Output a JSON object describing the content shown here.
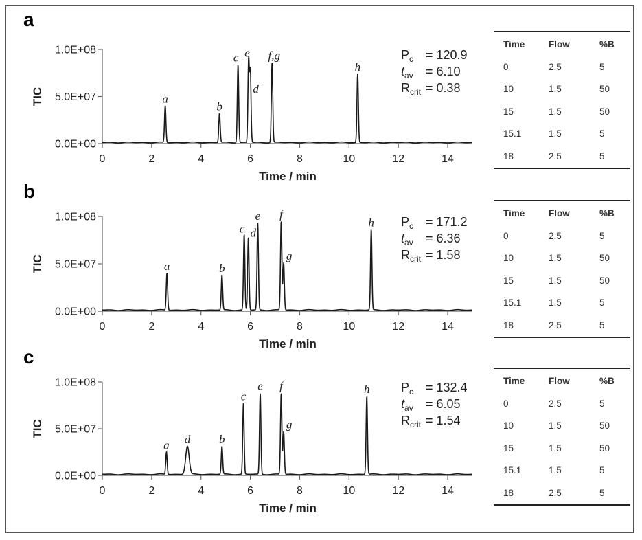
{
  "chart_data": [
    {
      "type": "line",
      "panel": "a",
      "xlabel": "Time / min",
      "ylabel": "TIC",
      "xlim": [
        0,
        15
      ],
      "ylim": [
        0,
        100000000
      ],
      "xticks": [
        "0",
        "2",
        "4",
        "6",
        "8",
        "10",
        "12",
        "14"
      ],
      "yticks": [
        "0.0E+00",
        "5.0E+07",
        "1.0E+08"
      ],
      "peaks": [
        {
          "label": "a",
          "time": 2.55,
          "height": 39000000
        },
        {
          "label": "b",
          "time": 4.75,
          "height": 31000000
        },
        {
          "label": "c",
          "time": 5.5,
          "height": 83000000
        },
        {
          "label": "e",
          "time": 5.93,
          "height": 88000000
        },
        {
          "label": "d",
          "time": 6.0,
          "height": 76000000
        },
        {
          "label": "f,g",
          "time": 6.88,
          "height": 85000000
        },
        {
          "label": "h",
          "time": 10.35,
          "height": 73000000
        }
      ],
      "stats": {
        "pc_label": "P",
        "pc_sub": "c",
        "pc_value": "= 120.9",
        "tav_label": "t",
        "tav_sub": "av",
        "tav_value": "= 6.10",
        "rcrit_label": "R",
        "rcrit_sub": "crit",
        "rcrit_value": "= 0.38"
      }
    },
    {
      "type": "line",
      "panel": "b",
      "xlabel": "Time / min",
      "ylabel": "TIC",
      "xlim": [
        0,
        15
      ],
      "ylim": [
        0,
        100000000
      ],
      "xticks": [
        "0",
        "2",
        "4",
        "6",
        "8",
        "10",
        "12",
        "14"
      ],
      "yticks": [
        "0.0E+00",
        "5.0E+07",
        "1.0E+08"
      ],
      "peaks": [
        {
          "label": "a",
          "time": 2.62,
          "height": 39000000
        },
        {
          "label": "b",
          "time": 4.85,
          "height": 37000000
        },
        {
          "label": "c",
          "time": 5.75,
          "height": 80000000
        },
        {
          "label": "d",
          "time": 5.92,
          "height": 77000000
        },
        {
          "label": "e",
          "time": 6.3,
          "height": 92000000
        },
        {
          "label": "f",
          "time": 7.25,
          "height": 94000000
        },
        {
          "label": "g",
          "time": 7.35,
          "height": 50000000
        },
        {
          "label": "h",
          "time": 10.9,
          "height": 85000000
        }
      ],
      "stats": {
        "pc_label": "P",
        "pc_sub": "c",
        "pc_value": "= 171.2",
        "tav_label": "t",
        "tav_sub": "av",
        "tav_value": "= 6.36",
        "rcrit_label": "R",
        "rcrit_sub": "crit",
        "rcrit_value": "= 1.58"
      }
    },
    {
      "type": "line",
      "panel": "c",
      "xlabel": "Time / min",
      "ylabel": "TIC",
      "xlim": [
        0,
        15
      ],
      "ylim": [
        0,
        100000000
      ],
      "xticks": [
        "0",
        "2",
        "4",
        "6",
        "8",
        "10",
        "12",
        "14"
      ],
      "yticks": [
        "0.0E+00",
        "5.0E+07",
        "1.0E+08"
      ],
      "peaks": [
        {
          "label": "a",
          "time": 2.6,
          "height": 24000000
        },
        {
          "label": "d",
          "time": 3.45,
          "height": 30000000
        },
        {
          "label": "b",
          "time": 4.85,
          "height": 30000000
        },
        {
          "label": "c",
          "time": 5.72,
          "height": 76000000
        },
        {
          "label": "e",
          "time": 6.4,
          "height": 87000000
        },
        {
          "label": "f",
          "time": 7.25,
          "height": 87000000
        },
        {
          "label": "g",
          "time": 7.35,
          "height": 46000000
        },
        {
          "label": "h",
          "time": 10.72,
          "height": 84000000
        }
      ],
      "stats": {
        "pc_label": "P",
        "pc_sub": "c",
        "pc_value": "= 132.4",
        "tav_label": "t",
        "tav_sub": "av",
        "tav_value": "= 6.05",
        "rcrit_label": "R",
        "rcrit_sub": "crit",
        "rcrit_value": "= 1.54"
      }
    }
  ],
  "gradient_tables": [
    {
      "headers": [
        "Time",
        "Flow",
        "%B"
      ],
      "rows": [
        [
          "0",
          "2.5",
          "5"
        ],
        [
          "10",
          "1.5",
          "50"
        ],
        [
          "15",
          "1.5",
          "50"
        ],
        [
          "15.1",
          "1.5",
          "5"
        ],
        [
          "18",
          "2.5",
          "5"
        ]
      ]
    },
    {
      "headers": [
        "Time",
        "Flow",
        "%B"
      ],
      "rows": [
        [
          "0",
          "2.5",
          "5"
        ],
        [
          "10",
          "1.5",
          "50"
        ],
        [
          "15",
          "1.5",
          "50"
        ],
        [
          "15.1",
          "1.5",
          "5"
        ],
        [
          "18",
          "2.5",
          "5"
        ]
      ]
    },
    {
      "headers": [
        "Time",
        "Flow",
        "%B"
      ],
      "rows": [
        [
          "0",
          "2.5",
          "5"
        ],
        [
          "10",
          "1.5",
          "50"
        ],
        [
          "15",
          "1.5",
          "50"
        ],
        [
          "15.1",
          "1.5",
          "5"
        ],
        [
          "18",
          "2.5",
          "5"
        ]
      ]
    }
  ]
}
